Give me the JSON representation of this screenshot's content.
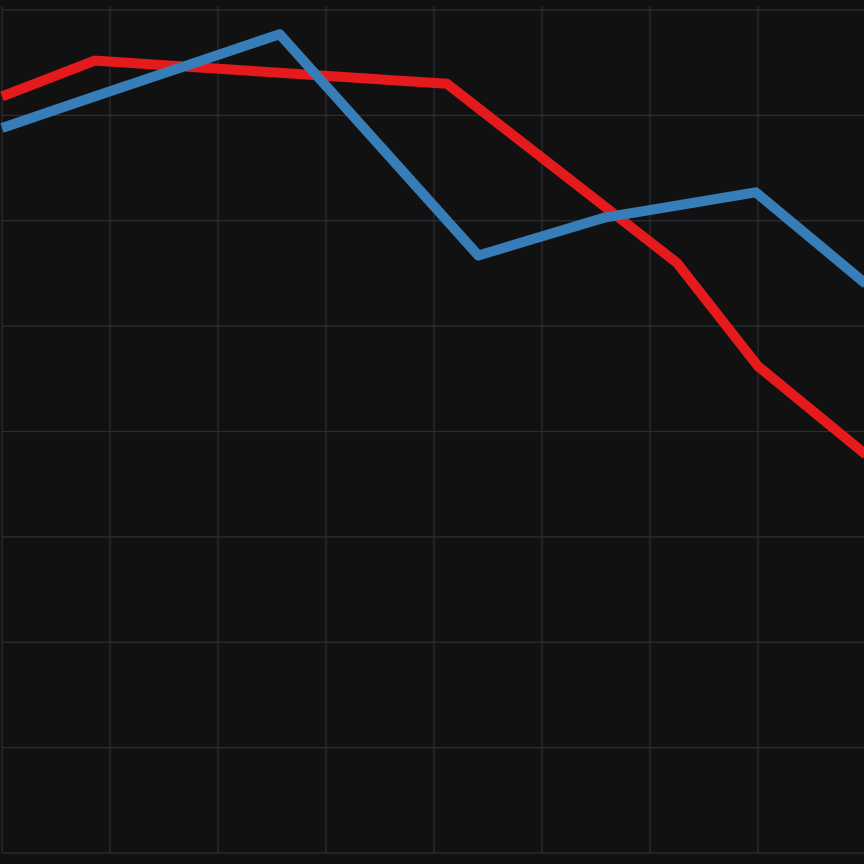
{
  "chart_data": {
    "type": "line",
    "title": "",
    "xlabel": "",
    "ylabel": "",
    "grid": true,
    "xlim": [
      0,
      8
    ],
    "ylim": [
      0,
      8
    ],
    "series": [
      {
        "color": "#e41a1c",
        "x": [
          0,
          0.86,
          4.12,
          6.25,
          7.0,
          8.0
        ],
        "y": [
          7.18,
          7.52,
          7.3,
          5.6,
          4.62,
          3.78
        ]
      },
      {
        "color": "#377eb8",
        "x": [
          0,
          0.86,
          2.57,
          4.41,
          5.58,
          6.98,
          8.0
        ],
        "y": [
          6.88,
          7.18,
          7.77,
          5.67,
          6.03,
          6.27,
          5.4
        ]
      }
    ]
  },
  "colors": {
    "background": "#111111",
    "grid": "#2a2f36"
  }
}
